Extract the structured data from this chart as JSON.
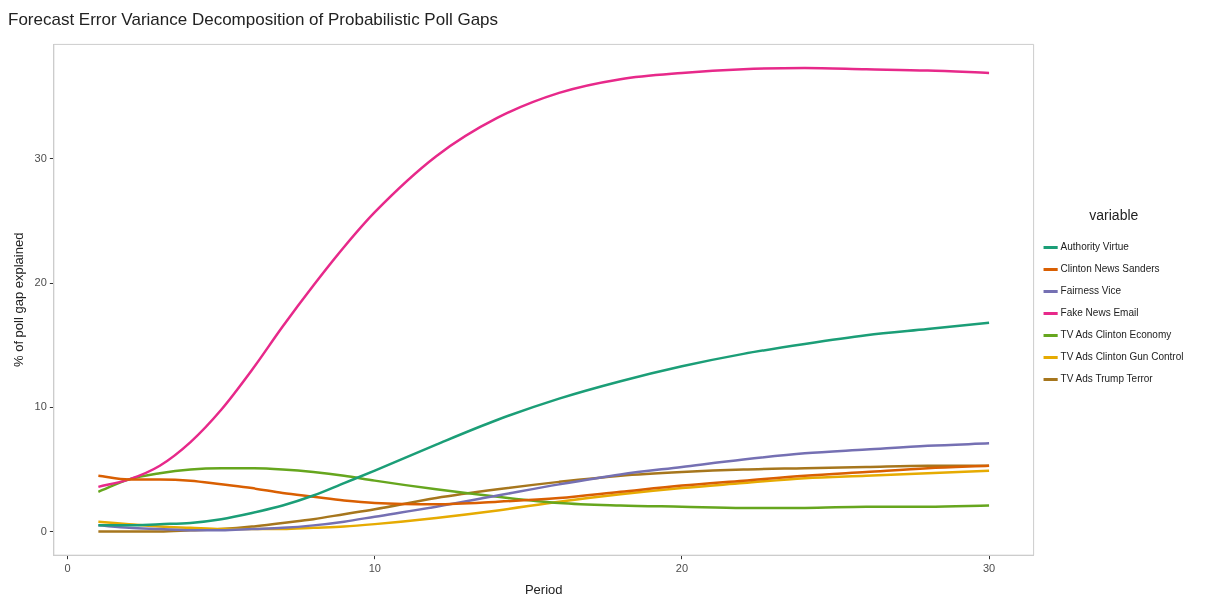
{
  "chart_data": {
    "type": "line",
    "title": "Forecast Error Variance Decomposition of Probabilistic Poll Gaps",
    "xlabel": "Period",
    "ylabel": "% of poll gap explained",
    "legend_title": "variable",
    "legend": "right",
    "grid": false,
    "marker": "none",
    "line_style": "solid",
    "x": [
      1,
      2,
      3,
      4,
      5,
      6,
      7,
      8,
      9,
      10,
      12,
      14,
      16,
      18,
      20,
      22,
      24,
      26,
      28,
      30
    ],
    "xlim": [
      -0.45,
      31.45
    ],
    "xticks": [
      0,
      10,
      20,
      30
    ],
    "ylim": [
      -1.9,
      39.2
    ],
    "yticks": [
      0,
      10,
      20,
      30
    ],
    "series": [
      {
        "name": "Authority Virtue",
        "color": "#1b9e77",
        "values": [
          0.5,
          0.5,
          0.6,
          0.7,
          1.0,
          1.5,
          2.1,
          2.9,
          3.9,
          4.9,
          7.0,
          9.0,
          10.7,
          12.1,
          13.3,
          14.3,
          15.1,
          15.8,
          16.3,
          16.8
        ]
      },
      {
        "name": "Clinton News Sanders",
        "color": "#d95f02",
        "values": [
          4.5,
          4.2,
          4.2,
          4.1,
          3.8,
          3.5,
          3.1,
          2.8,
          2.5,
          2.3,
          2.2,
          2.4,
          2.7,
          3.2,
          3.7,
          4.1,
          4.5,
          4.8,
          5.1,
          5.3
        ]
      },
      {
        "name": "Fairness Vice",
        "color": "#7570b3",
        "values": [
          0.5,
          0.3,
          0.2,
          0.1,
          0.1,
          0.2,
          0.3,
          0.5,
          0.8,
          1.2,
          2.0,
          2.9,
          3.8,
          4.6,
          5.2,
          5.8,
          6.3,
          6.6,
          6.9,
          7.1
        ]
      },
      {
        "name": "Fake News Email",
        "color": "#e7298a",
        "values": [
          3.6,
          4.2,
          5.3,
          7.2,
          9.8,
          13,
          16.5,
          19.8,
          22.9,
          25.7,
          30.2,
          33.3,
          35.3,
          36.4,
          36.9,
          37.2,
          37.3,
          37.2,
          37.1,
          36.9
        ]
      },
      {
        "name": "TV Ads Clinton Economy",
        "color": "#66a61e",
        "values": [
          3.2,
          4.2,
          4.7,
          5.0,
          5.1,
          5.1,
          5.0,
          4.8,
          4.5,
          4.1,
          3.4,
          2.8,
          2.3,
          2.1,
          2.0,
          1.9,
          1.9,
          2.0,
          2.0,
          2.1
        ]
      },
      {
        "name": "TV Ads Clinton Gun Control",
        "color": "#e6ab02",
        "values": [
          0.8,
          0.6,
          0.4,
          0.3,
          0.2,
          0.2,
          0.2,
          0.3,
          0.4,
          0.6,
          1.1,
          1.7,
          2.4,
          3.0,
          3.5,
          3.9,
          4.3,
          4.5,
          4.7,
          4.9
        ]
      },
      {
        "name": "TV Ads Trump Terror",
        "color": "#a6761d",
        "values": [
          0.0,
          0.0,
          0.0,
          0.1,
          0.2,
          0.4,
          0.7,
          1.0,
          1.4,
          1.8,
          2.7,
          3.4,
          4.0,
          4.5,
          4.8,
          5.0,
          5.1,
          5.2,
          5.3,
          5.3
        ]
      }
    ]
  }
}
